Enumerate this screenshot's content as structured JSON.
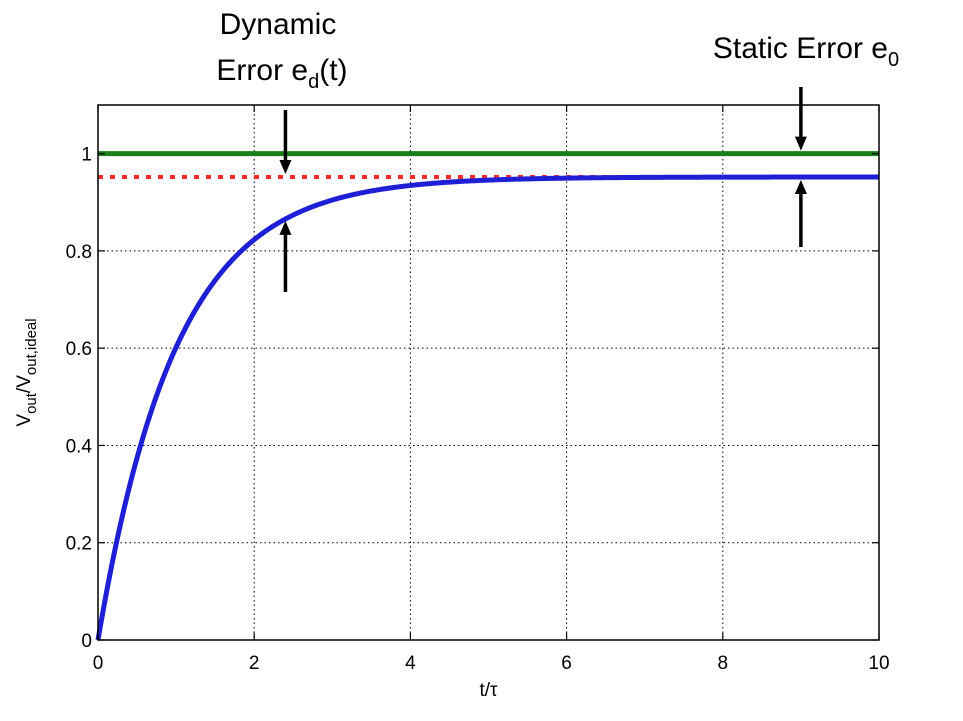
{
  "chart_data": {
    "type": "line",
    "xlabel": "t/τ",
    "ylabel": "V_out/V_out,ideal",
    "ylabel_parts": {
      "main1": "V",
      "sub1": "out",
      "slash": "/V",
      "sub2": "out,ideal"
    },
    "xlim": [
      0,
      10
    ],
    "ylim": [
      0,
      1.1
    ],
    "xticks": [
      0,
      2,
      4,
      6,
      8,
      10
    ],
    "yticks": [
      0,
      0.2,
      0.4,
      0.6,
      0.8,
      1
    ],
    "xtick_labels": [
      "0",
      "2",
      "4",
      "6",
      "8",
      "10"
    ],
    "ytick_labels": [
      "0",
      "0.2",
      "0.4",
      "0.6",
      "0.8",
      "1"
    ],
    "grid": true,
    "series": [
      {
        "style": "solid",
        "color": "#1f1fd6",
        "kind": "exponential",
        "final_value": 0.952,
        "tau": 1,
        "x": [
          0,
          0.5,
          1,
          1.5,
          2,
          2.5,
          3,
          4,
          5,
          6,
          7,
          8,
          9,
          10
        ],
        "y": [
          0,
          0.375,
          0.602,
          0.74,
          0.823,
          0.874,
          0.905,
          0.935,
          0.946,
          0.95,
          0.951,
          0.952,
          0.952,
          0.952
        ]
      },
      {
        "style": "solid",
        "color": "#1a7f1a",
        "x": [
          0,
          10
        ],
        "y": [
          1,
          1
        ]
      },
      {
        "style": "dotted",
        "color": "#ff2a2a",
        "x": [
          0,
          10
        ],
        "y": [
          0.952,
          0.952
        ]
      }
    ],
    "annotations": [
      {
        "id": "dynamic",
        "line1": "Dynamic",
        "line2_main": "Error e",
        "line2_sub": "d",
        "line2_tail": "(t)",
        "arrow_x": 2.4,
        "arrow_top_to": 0.952,
        "arrow_bottom_to": 0.87
      },
      {
        "id": "static",
        "line1_main": "Static Error e",
        "line1_sub": "0",
        "arrow_x": 9,
        "arrow_top_to": 1.0,
        "arrow_bottom_to": 0.952
      }
    ]
  }
}
